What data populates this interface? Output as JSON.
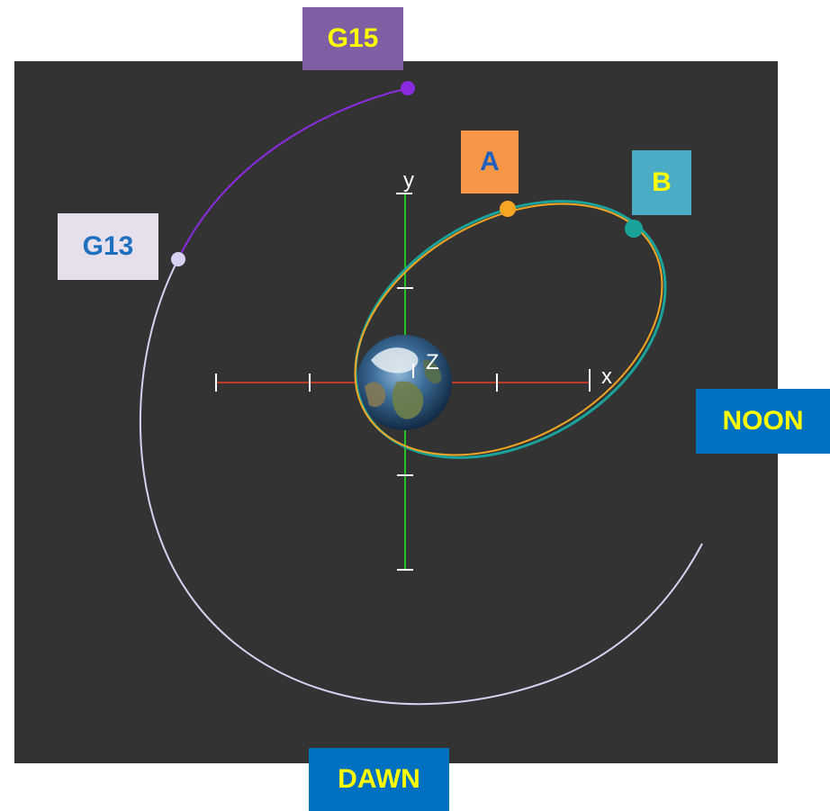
{
  "labels": {
    "g15": {
      "text": "G15",
      "bg": "#7f5fa3",
      "fg": "#ffff00"
    },
    "a": {
      "text": "A",
      "bg": "#f79646",
      "fg": "#1f5fbf"
    },
    "b": {
      "text": "B",
      "bg": "#4bacc6",
      "fg": "#ffff00"
    },
    "g13": {
      "text": "G13",
      "bg": "#e6e0ec",
      "fg": "#1f6fbf"
    },
    "noon": {
      "text": "NOON",
      "bg": "#0070c0",
      "fg": "#ffff00"
    },
    "dawn": {
      "text": "DAWN",
      "bg": "#0070c0",
      "fg": "#ffff00"
    }
  },
  "axes": {
    "x_label": "x",
    "y_label": "y",
    "z_label": "Z",
    "x_color": "#c0392b",
    "y_color": "#22c322"
  },
  "colors": {
    "background": "#333333",
    "orbit_a": "#f5a623",
    "orbit_b": "#1aa39a",
    "orbit_g15": "#8a2be2",
    "orbit_g13": "#d8d0f0"
  }
}
